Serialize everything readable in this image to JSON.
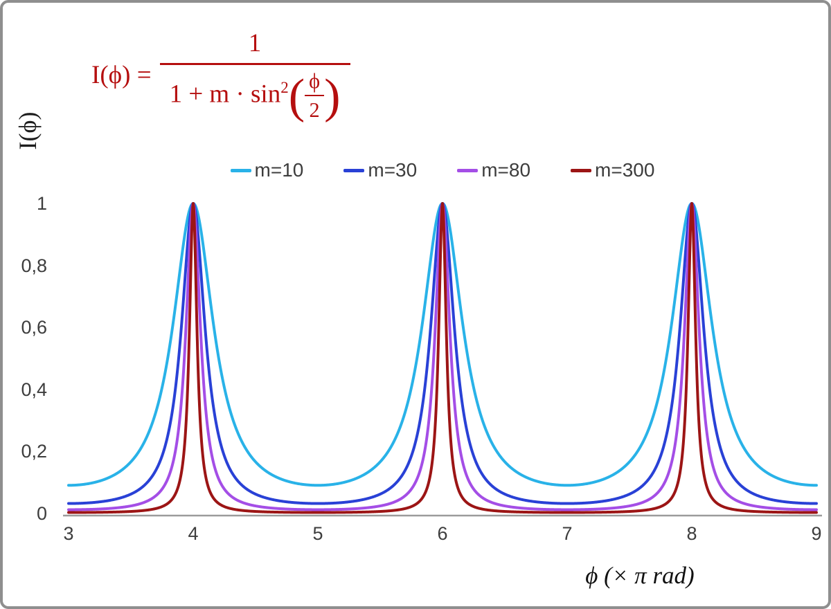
{
  "frame": {
    "background": "#ffffff",
    "border_color": "#8f8f8f"
  },
  "formula": {
    "lhs": "I(ϕ) =",
    "numerator": "1",
    "denom_prefix": "1 + m · sin",
    "denom_exponent": "2",
    "inner_numerator": "ϕ",
    "inner_denominator": "2",
    "color": "#b50f0f"
  },
  "chart_data": {
    "type": "line",
    "title": "I(ϕ) = 1 / (1 + m·sin²(ϕ/2))",
    "xlabel": "ϕ  (× π rad)",
    "ylabel": "I(ϕ)",
    "x_unit": "π rad",
    "xlim": [
      3,
      9
    ],
    "ylim": [
      0,
      1
    ],
    "grid": false,
    "legend_position": "top-center",
    "x_ticks": {
      "values": [
        3,
        4,
        5,
        6,
        7,
        8,
        9
      ],
      "labels": [
        "3",
        "4",
        "5",
        "6",
        "7",
        "8",
        "9"
      ]
    },
    "y_ticks": {
      "values": [
        0,
        0.2,
        0.4,
        0.6,
        0.8,
        1
      ],
      "labels": [
        "0",
        "0,2",
        "0,4",
        "0,6",
        "0,8",
        "1"
      ]
    },
    "function": "I(x) = 1 / (1 + m * sin^2(pi*x/2)) with x in units of pi rad",
    "peaks_at_x": [
      4,
      6,
      8
    ],
    "peak_value": 1,
    "series": [
      {
        "name": "m=10",
        "m": 10,
        "color": "#29b2e8",
        "min_value": 0.0909
      },
      {
        "name": "m=30",
        "m": 30,
        "color": "#2941d6",
        "min_value": 0.0323
      },
      {
        "name": "m=80",
        "m": 80,
        "color": "#a44ee6",
        "min_value": 0.0123
      },
      {
        "name": "m=300",
        "m": 300,
        "color": "#9c1515",
        "min_value": 0.0033
      }
    ]
  }
}
